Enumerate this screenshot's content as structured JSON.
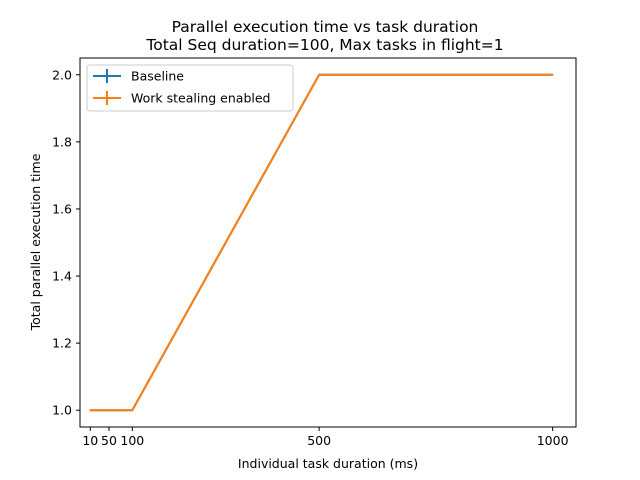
{
  "chart_data": {
    "type": "line",
    "title_line1": "Parallel execution time vs task duration",
    "title_line2": "Total Seq duration=100, Max tasks in flight=1",
    "xlabel": "Individual task duration (ms)",
    "ylabel": "Total parallel execution time",
    "xlim": [
      -12,
      1050
    ],
    "ylim": [
      0.95,
      2.05
    ],
    "xticks": [
      10,
      50,
      100,
      500,
      1000
    ],
    "xtick_labels": [
      "10",
      "50",
      "100",
      "500",
      "1000"
    ],
    "yticks": [
      1.0,
      1.2,
      1.4,
      1.6,
      1.8,
      2.0
    ],
    "ytick_labels": [
      "1.0",
      "1.2",
      "1.4",
      "1.6",
      "1.8",
      "2.0"
    ],
    "x": [
      10,
      50,
      100,
      500,
      1000
    ],
    "series": [
      {
        "name": "Baseline",
        "color": "#1f77b4",
        "values": [
          1.0,
          1.0,
          1.0,
          2.0,
          2.0
        ]
      },
      {
        "name": "Work stealing enabled",
        "color": "#ff7f0e",
        "values": [
          1.0,
          1.0,
          1.0,
          2.0,
          2.0
        ]
      }
    ],
    "legend_position": "upper-left",
    "grid": false
  }
}
